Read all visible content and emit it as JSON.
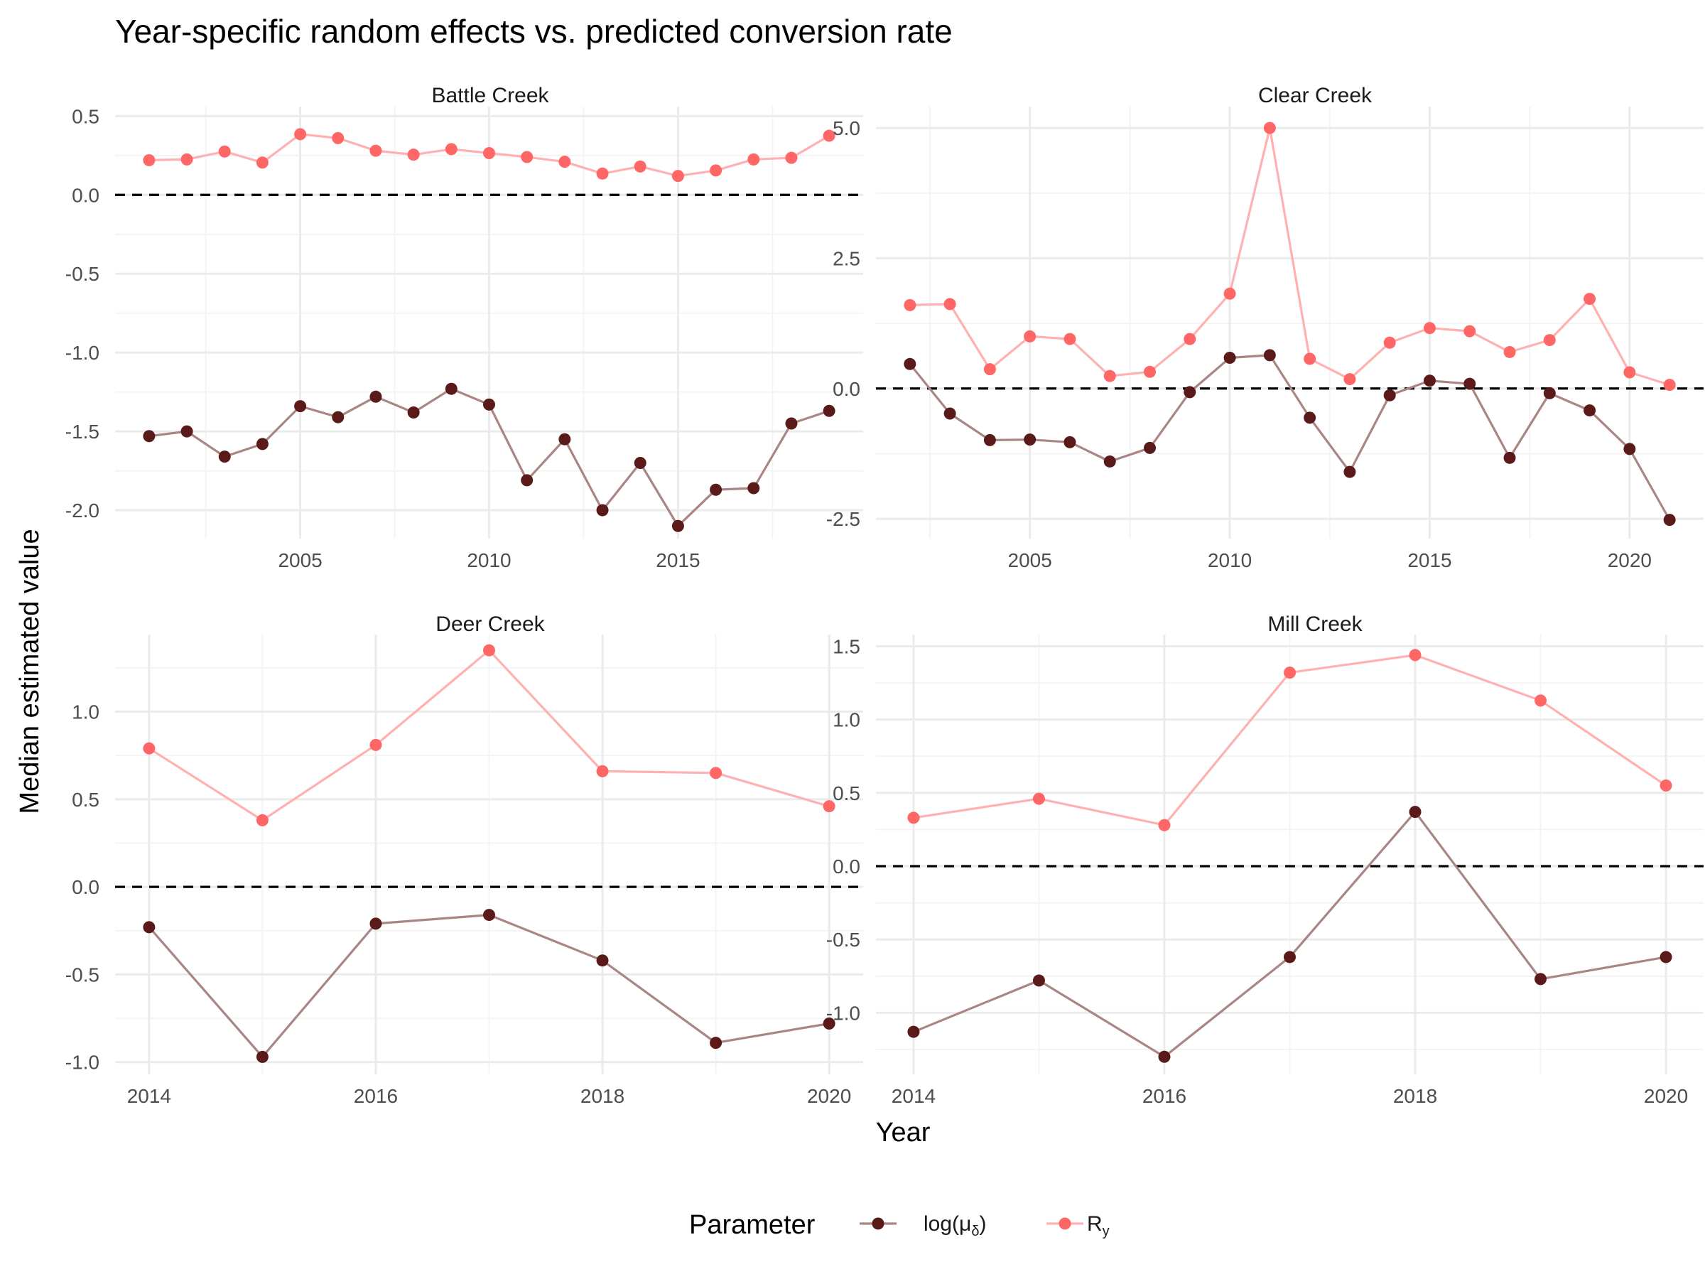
{
  "title": "Year-specific random effects vs. predicted conversion rate",
  "xlabel": "Year",
  "ylabel": "Median estimated value",
  "legend": {
    "title": "Parameter",
    "position": "bottom",
    "items": [
      {
        "label": "log(μ",
        "sub": "δ",
        "suffix": ")",
        "color": "#5a1a1a"
      },
      {
        "label": "R",
        "sub": "y",
        "suffix": "",
        "color": "#ff6666"
      }
    ]
  },
  "colors": {
    "log_mu": "#5a1a1a",
    "log_mu_line": "#a98583",
    "R_y": "#ff6666",
    "R_y_line": "#ffb0b0",
    "grid_major": "#ebebeb",
    "grid_minor": "#f4f4f4",
    "zero_line": "#000000"
  },
  "chart_data": [
    {
      "type": "line",
      "panel": "Battle Creek",
      "xlim": [
        2000.1,
        2019.9
      ],
      "ylim": [
        -2.18,
        0.56
      ],
      "x_ticks": [
        2005,
        2010,
        2015
      ],
      "y_ticks": [
        0.5,
        0.0,
        -0.5,
        -1.0,
        -1.5,
        -2.0
      ],
      "y_tick_labels": [
        "0.5",
        "0.0",
        "-0.5",
        "-1.0",
        "-1.5",
        "-2.0"
      ],
      "hline": 0,
      "x": [
        2001,
        2002,
        2003,
        2004,
        2005,
        2006,
        2007,
        2008,
        2009,
        2010,
        2011,
        2012,
        2013,
        2014,
        2015,
        2016,
        2017,
        2018,
        2019
      ],
      "series": [
        {
          "name": "R_y",
          "values": [
            0.22,
            0.225,
            0.275,
            0.205,
            0.385,
            0.36,
            0.28,
            0.255,
            0.29,
            0.265,
            0.24,
            0.21,
            0.135,
            0.18,
            0.12,
            0.155,
            0.225,
            0.235,
            0.375
          ]
        },
        {
          "name": "log_mu",
          "values": [
            -1.53,
            -1.5,
            -1.66,
            -1.58,
            -1.34,
            -1.41,
            -1.28,
            -1.38,
            -1.23,
            -1.33,
            -1.81,
            -1.55,
            -2.0,
            -1.7,
            -2.1,
            -1.87,
            -1.86,
            -1.45,
            -1.37
          ]
        }
      ]
    },
    {
      "type": "line",
      "panel": "Clear Creek",
      "xlim": [
        2001.15,
        2021.85
      ],
      "ylim": [
        -2.88,
        5.41
      ],
      "x_ticks": [
        2005,
        2010,
        2015,
        2020
      ],
      "y_ticks": [
        5.0,
        2.5,
        0.0,
        -2.5
      ],
      "y_tick_labels": [
        "5.0",
        "2.5",
        "0.0",
        "-2.5"
      ],
      "hline": 0,
      "x": [
        2002,
        2003,
        2004,
        2005,
        2006,
        2007,
        2008,
        2009,
        2010,
        2011,
        2012,
        2013,
        2014,
        2015,
        2016,
        2017,
        2018,
        2019,
        2020,
        2021
      ],
      "series": [
        {
          "name": "R_y",
          "values": [
            1.6,
            1.62,
            0.37,
            1.0,
            0.95,
            0.24,
            0.32,
            0.95,
            1.82,
            5.0,
            0.57,
            0.18,
            0.88,
            1.16,
            1.1,
            0.7,
            0.93,
            1.72,
            0.31,
            0.07
          ]
        },
        {
          "name": "log_mu",
          "values": [
            0.47,
            -0.48,
            -0.99,
            -0.98,
            -1.03,
            -1.4,
            -1.14,
            -0.07,
            0.59,
            0.64,
            -0.56,
            -1.6,
            -0.13,
            0.15,
            0.09,
            -1.33,
            -0.09,
            -0.42,
            -1.16,
            -2.52
          ]
        }
      ]
    },
    {
      "type": "line",
      "panel": "Deer Creek",
      "xlim": [
        2013.7,
        2020.3
      ],
      "ylim": [
        -1.07,
        1.44
      ],
      "x_ticks": [
        2014,
        2016,
        2018,
        2020
      ],
      "y_ticks": [
        1.0,
        0.5,
        0.0,
        -0.5,
        -1.0
      ],
      "y_tick_labels": [
        "1.0",
        "0.5",
        "0.0",
        "-0.5",
        "-1.0"
      ],
      "hline": 0,
      "x": [
        2014,
        2015,
        2016,
        2017,
        2018,
        2019,
        2020
      ],
      "series": [
        {
          "name": "R_y",
          "values": [
            0.79,
            0.38,
            0.81,
            1.35,
            0.66,
            0.65,
            0.46
          ]
        },
        {
          "name": "log_mu",
          "values": [
            -0.23,
            -0.97,
            -0.21,
            -0.16,
            -0.42,
            -0.89,
            -0.78
          ]
        }
      ]
    },
    {
      "type": "line",
      "panel": "Mill Creek",
      "xlim": [
        2013.7,
        2020.3
      ],
      "ylim": [
        -1.42,
        1.58
      ],
      "x_ticks": [
        2014,
        2016,
        2018,
        2020
      ],
      "y_ticks": [
        1.5,
        1.0,
        0.5,
        0.0,
        -0.5,
        -1.0
      ],
      "y_tick_labels": [
        "1.5",
        "1.0",
        "0.5",
        "0.0",
        "-0.5",
        "-1.0"
      ],
      "hline": 0,
      "x": [
        2014,
        2015,
        2016,
        2017,
        2018,
        2019,
        2020
      ],
      "series": [
        {
          "name": "R_y",
          "values": [
            0.33,
            0.46,
            0.28,
            1.32,
            1.44,
            1.13,
            0.55
          ]
        },
        {
          "name": "log_mu",
          "values": [
            -1.13,
            -0.78,
            -1.3,
            -0.62,
            0.37,
            -0.77,
            -0.62
          ]
        }
      ]
    }
  ]
}
